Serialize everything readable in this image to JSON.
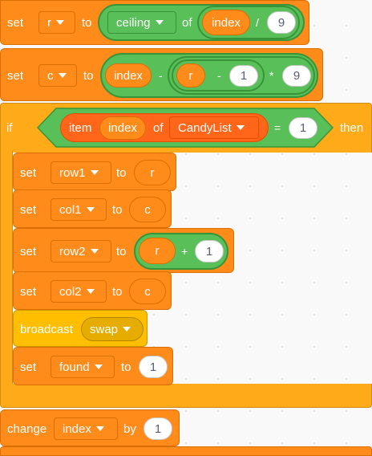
{
  "blocks": {
    "set_r": {
      "kw": "set",
      "var": "r",
      "to": "to",
      "fn": "ceiling",
      "of": "of",
      "rep": "index",
      "op": "/",
      "n": "9"
    },
    "set_c": {
      "kw": "set",
      "var": "c",
      "to": "to",
      "rep1": "index",
      "op1": "-",
      "rep2": "r",
      "op2": "-",
      "n1": "1",
      "op3": "*",
      "n2": "9"
    },
    "if_block": {
      "kw": "if",
      "item": "item",
      "rep": "index",
      "of": "of",
      "list": "CandyList",
      "eq": "=",
      "n": "1",
      "then": "then"
    },
    "set_row1": {
      "kw": "set",
      "var": "row1",
      "to": "to",
      "rep": "r"
    },
    "set_col1": {
      "kw": "set",
      "var": "col1",
      "to": "to",
      "rep": "c"
    },
    "set_row2": {
      "kw": "set",
      "var": "row2",
      "to": "to",
      "rep": "r",
      "op": "+",
      "n": "1"
    },
    "set_col2": {
      "kw": "set",
      "var": "col2",
      "to": "to",
      "rep": "c"
    },
    "broadcast": {
      "kw": "broadcast",
      "msg": "swap"
    },
    "set_found": {
      "kw": "set",
      "var": "found",
      "to": "to",
      "n": "1"
    },
    "change_index": {
      "kw": "change",
      "var": "index",
      "by": "by",
      "n": "1"
    }
  },
  "colors": {
    "variables": "#ff8c1a",
    "control": "#ffab19",
    "events": "#ffbf00",
    "operators": "#59c059",
    "lists": "#ff661a"
  }
}
